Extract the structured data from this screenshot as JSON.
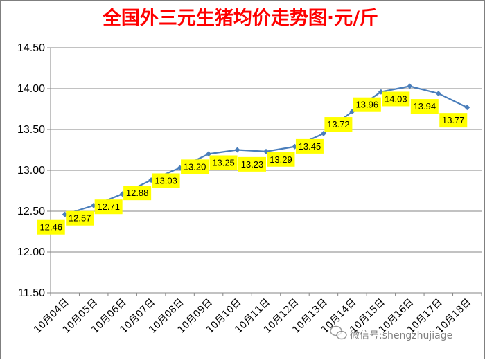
{
  "chart_data": {
    "type": "line",
    "title": "全国外三元生猪均价走势图·元/斤",
    "categories": [
      "10月04日",
      "10月05日",
      "10月06日",
      "10月07日",
      "10月08日",
      "10月09日",
      "10月10日",
      "10月11日",
      "10月12日",
      "10月13日",
      "10月14日",
      "10月15日",
      "10月16日",
      "10月17日",
      "10月18日"
    ],
    "series": [
      {
        "values": [
          12.46,
          12.57,
          12.71,
          12.88,
          13.03,
          13.2,
          13.25,
          13.23,
          13.29,
          13.45,
          13.72,
          13.96,
          14.03,
          13.94,
          13.77
        ]
      }
    ],
    "data_labels": [
      "12.46",
      "12.57",
      "12.71",
      "12.88",
      "13.03",
      "13.20",
      "13.25",
      "13.23",
      "13.29",
      "13.45",
      "13.72",
      "13.96",
      "14.03",
      "13.94",
      "13.77"
    ],
    "yticks": [
      "11.50",
      "12.00",
      "12.50",
      "13.00",
      "13.50",
      "14.00",
      "14.50"
    ],
    "ylim": [
      11.5,
      14.5
    ],
    "grid": "horizontal",
    "legend": "none",
    "colors": {
      "line": "#4a7ebb",
      "label_bg": "#ffff00",
      "title": "#ff0000",
      "grid": "#868686"
    }
  },
  "watermark": {
    "text": "微信号:shengzhujiage",
    "icon": "wechat-icon"
  }
}
